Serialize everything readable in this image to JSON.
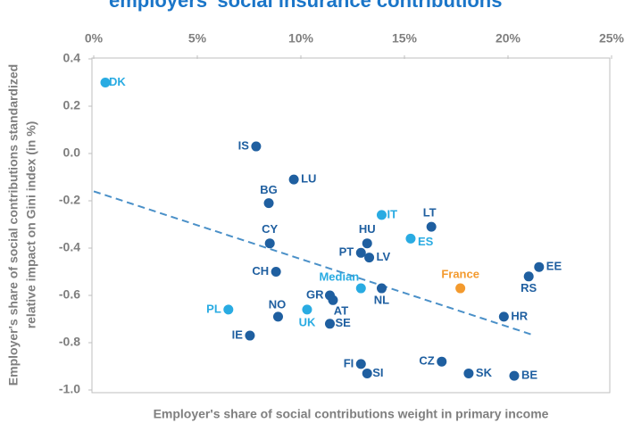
{
  "chart_data": {
    "type": "scatter",
    "title": "employers' social insurance contributions",
    "x_label": "Employer's share of social contributions weight in primary income",
    "y_label": [
      "Employer's share of social contributions standardized",
      "relative impact on Gini index (in %)"
    ],
    "labels": [
      "DK",
      "IS",
      "LU",
      "BG",
      "CY",
      "CH",
      "IT",
      "LT",
      "HU",
      "ES",
      "PT",
      "LV",
      "France",
      "EE",
      "RS",
      "Median",
      "NL",
      "GR",
      "AT",
      "PL",
      "NO",
      "UK",
      "SE",
      "HR",
      "IE",
      "FI",
      "SI",
      "CZ",
      "SK",
      "BE"
    ],
    "x": [
      0.56,
      7.84,
      9.66,
      8.45,
      8.5,
      8.8,
      13.9,
      16.3,
      13.2,
      15.3,
      12.9,
      13.3,
      17.7,
      21.5,
      21.0,
      12.9,
      13.9,
      11.4,
      11.55,
      6.5,
      8.9,
      10.3,
      11.4,
      19.8,
      7.54,
      12.9,
      13.2,
      16.8,
      18.1,
      20.3
    ],
    "y": [
      0.3,
      0.03,
      -0.11,
      -0.21,
      -0.38,
      -0.5,
      -0.26,
      -0.31,
      -0.38,
      -0.36,
      -0.42,
      -0.44,
      -0.57,
      -0.48,
      -0.52,
      -0.57,
      -0.57,
      -0.6,
      -0.62,
      -0.66,
      -0.69,
      -0.66,
      -0.72,
      -0.69,
      -0.77,
      -0.89,
      -0.93,
      -0.88,
      -0.93,
      -0.94
    ],
    "colors": [
      "#29abe2",
      "#1f5fa0",
      "#1f5fa0",
      "#1f5fa0",
      "#1f5fa0",
      "#1f5fa0",
      "#29abe2",
      "#1f5fa0",
      "#1f5fa0",
      "#29abe2",
      "#1f5fa0",
      "#1f5fa0",
      "#f39a2e",
      "#1f5fa0",
      "#1f5fa0",
      "#29abe2",
      "#1f5fa0",
      "#1f5fa0",
      "#1f5fa0",
      "#29abe2",
      "#1f5fa0",
      "#29abe2",
      "#1f5fa0",
      "#1f5fa0",
      "#1f5fa0",
      "#1f5fa0",
      "#1f5fa0",
      "#1f5fa0",
      "#1f5fa0",
      "#1f5fa0"
    ],
    "trendline": {
      "x": [
        0,
        21.3
      ],
      "y": [
        -0.16,
        -0.77
      ],
      "color": "#4a90c8"
    },
    "xlim": [
      0,
      25
    ],
    "xticks": [
      {
        "value": 0,
        "label": "0%"
      },
      {
        "value": 5,
        "label": "5%"
      },
      {
        "value": 10,
        "label": "10%"
      },
      {
        "value": 15,
        "label": "15%"
      },
      {
        "value": 20,
        "label": "20%"
      },
      {
        "value": 25,
        "label": "25%"
      }
    ],
    "ylim": [
      -1.0,
      0.4
    ],
    "yticks": [
      0.4,
      0.2,
      {
        "value": 0,
        "label": "0.0"
      },
      -0.2,
      -0.4,
      -0.6,
      -0.8,
      {
        "value": -1,
        "label": "-1.0"
      }
    ]
  }
}
